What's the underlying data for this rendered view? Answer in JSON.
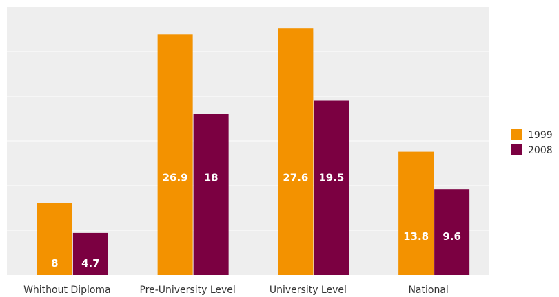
{
  "chart_data": {
    "type": "bar",
    "categories": [
      "Whithout Diploma",
      "Pre-University Level",
      "University Level",
      "National"
    ],
    "series": [
      {
        "name": "1999",
        "values": [
          8,
          26.9,
          27.6,
          13.8
        ],
        "color": "#F39200"
      },
      {
        "name": "2008",
        "values": [
          4.7,
          18,
          19.5,
          9.6
        ],
        "color": "#7B0041"
      }
    ],
    "shadow_color": "#C8C8C8",
    "plot_background": "#EEEEEE",
    "gridlines": true,
    "ylim": [
      0,
      30
    ],
    "legend_position": "right",
    "title": "",
    "xlabel": "",
    "ylabel": ""
  }
}
